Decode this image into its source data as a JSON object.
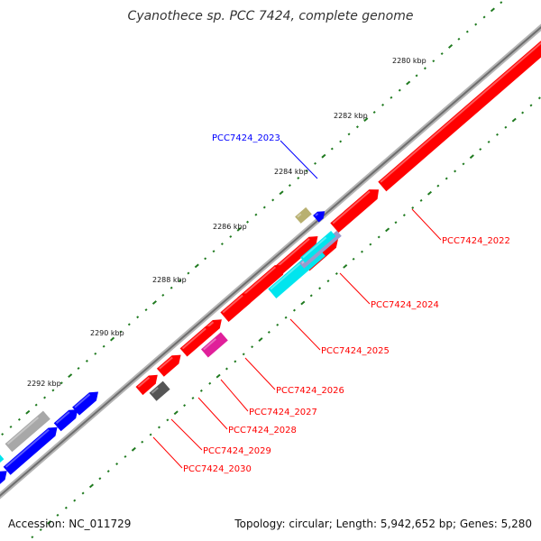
{
  "title": "Cyanothece sp. PCC 7424, complete genome",
  "footer": {
    "accession": "Accession: NC_011729",
    "summary": "Topology: circular; Length: 5,942,652 bp; Genes: 5,280"
  },
  "colors": {
    "backbone": "#8c8c8c",
    "tick": "#1f7a1f",
    "forward_gene": "#ff0000",
    "reverse_gene": "#0000ff",
    "cyan_gene": "#00e5ee",
    "magenta_gene": "#e0209a",
    "gray_gene": "#a8a8a8",
    "dark_gene": "#555555",
    "olive_gene": "#b8b070",
    "lavender_gene": "#9999cc",
    "label_red": "#ff0000",
    "label_blue": "#0000ff"
  },
  "tick_labels": [
    "2280 kbp",
    "2282 kbp",
    "2284 kbp",
    "2286 kbp",
    "2288 kbp",
    "2290 kbp",
    "2292 kbp"
  ],
  "gene_labels": [
    "PCC7424_2022",
    "PCC7424_2023",
    "PCC7424_2024",
    "PCC7424_2025",
    "PCC7424_2026",
    "PCC7424_2027",
    "PCC7424_2028",
    "PCC7424_2029",
    "PCC7424_2030"
  ]
}
